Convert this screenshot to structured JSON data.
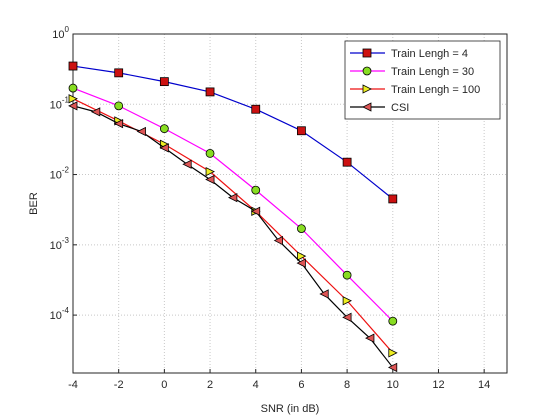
{
  "chart_data": {
    "type": "line",
    "xlabel": "SNR (in dB)",
    "ylabel": "BER",
    "log_y": true,
    "grid": true,
    "legend_position": "upper-right",
    "xlim": [
      -4,
      15
    ],
    "xticks": [
      -4,
      -2,
      0,
      2,
      4,
      6,
      8,
      10,
      12,
      14
    ],
    "ylim": [
      1.5e-05,
      1
    ],
    "yticks": [
      {
        "value": 0.0001,
        "label": "10^-4"
      },
      {
        "value": 0.001,
        "label": "10^-3"
      },
      {
        "value": 0.01,
        "label": "10^-2"
      },
      {
        "value": 0.1,
        "label": "10^-1"
      },
      {
        "value": 1,
        "label": "10^0"
      }
    ],
    "series": [
      {
        "name": "Train Lengh = 4",
        "color": "#0000cc",
        "marker": "square",
        "marker_color": "#cc1111",
        "x": [
          -4,
          -2,
          0,
          2,
          4,
          6,
          8,
          10
        ],
        "values": [
          0.35,
          0.28,
          0.21,
          0.15,
          0.085,
          0.042,
          0.015,
          0.0045
        ]
      },
      {
        "name": "Train Lengh = 30",
        "color": "#ff00ff",
        "marker": "circle",
        "marker_color": "#88dd22",
        "x": [
          -4,
          -2,
          0,
          2,
          4,
          6,
          8,
          10
        ],
        "values": [
          0.17,
          0.095,
          0.045,
          0.02,
          0.006,
          0.0017,
          0.00037,
          8.2e-05
        ]
      },
      {
        "name": "Train Lengh = 100",
        "color": "#ee1111",
        "marker": "triangle-right",
        "marker_color": "#eeee22",
        "x": [
          -4,
          -2,
          0,
          2,
          4,
          6,
          8,
          10
        ],
        "values": [
          0.12,
          0.058,
          0.027,
          0.011,
          0.003,
          0.00069,
          0.00016,
          2.9e-05
        ]
      },
      {
        "name": "CSI",
        "color": "#000000",
        "marker": "triangle-left",
        "marker_color": "#dd5555",
        "x": [
          -4,
          -3,
          -2,
          -1,
          0,
          1,
          2,
          3,
          4,
          5,
          6,
          7,
          8,
          9,
          10
        ],
        "values": [
          0.095,
          0.078,
          0.053,
          0.041,
          0.024,
          0.014,
          0.0085,
          0.0047,
          0.003,
          0.00115,
          0.00055,
          0.0002,
          9.3e-05,
          4.7e-05,
          1.8e-05
        ]
      }
    ]
  }
}
